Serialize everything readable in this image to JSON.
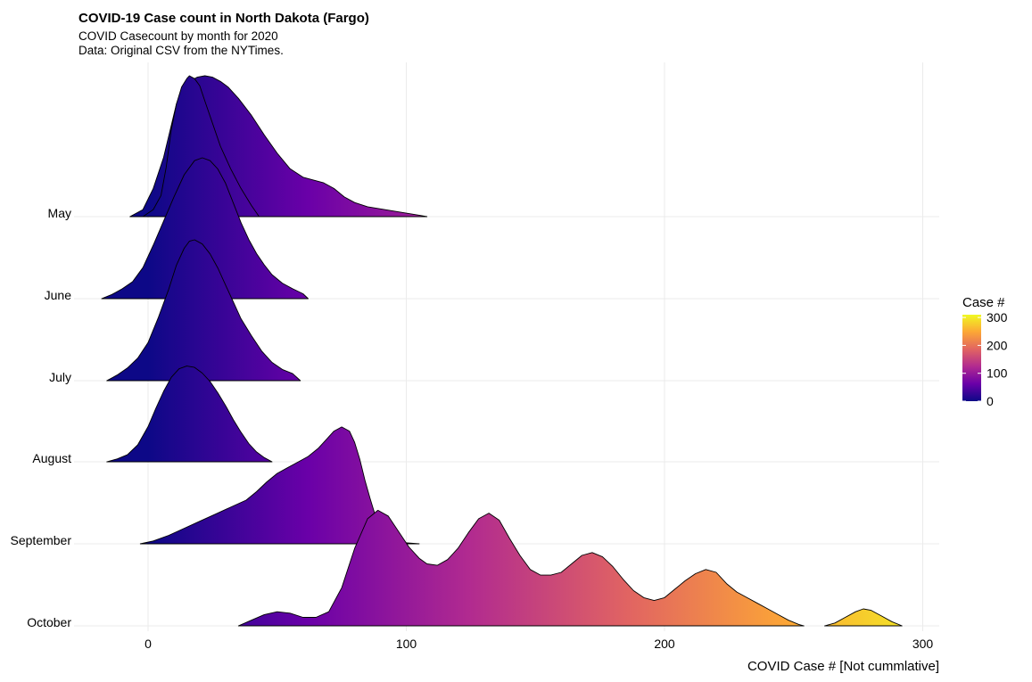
{
  "chart_data": {
    "type": "area",
    "title": "COVID-19 Case count in North Dakota (Fargo)",
    "subtitle_lines": [
      "COVID Casecount by month for 2020",
      "Data: Original CSV from the NYTimes."
    ],
    "xlabel": "COVID Case # [Not cummlative]",
    "ylabel": "",
    "xlim": [
      -27,
      306
    ],
    "x_ticks": [
      0,
      100,
      200,
      300
    ],
    "grid": true,
    "legend": {
      "title": "Case #",
      "ticks": [
        300,
        200,
        100,
        0
      ],
      "range": [
        0,
        310
      ],
      "colors": [
        "#0d0887",
        "#6a00a8",
        "#b12a90",
        "#e16462",
        "#fca636",
        "#f0f921"
      ],
      "placement": "right"
    },
    "categories": [
      "May",
      "June",
      "July",
      "August",
      "September",
      "October"
    ],
    "series": [
      {
        "name": "May",
        "points": [
          [
            -7,
            0
          ],
          [
            -2,
            0.05
          ],
          [
            2,
            0.2
          ],
          [
            6,
            0.42
          ],
          [
            9,
            0.65
          ],
          [
            11,
            0.8
          ],
          [
            13,
            0.9
          ],
          [
            16,
            0.96
          ],
          [
            19,
            0.99
          ],
          [
            22,
            1.0
          ],
          [
            25,
            0.99
          ],
          [
            28,
            0.96
          ],
          [
            31,
            0.92
          ],
          [
            35,
            0.84
          ],
          [
            40,
            0.72
          ],
          [
            45,
            0.58
          ],
          [
            50,
            0.45
          ],
          [
            55,
            0.34
          ],
          [
            60,
            0.28
          ],
          [
            64,
            0.26
          ],
          [
            68,
            0.24
          ],
          [
            72,
            0.2
          ],
          [
            76,
            0.14
          ],
          [
            80,
            0.1
          ],
          [
            85,
            0.07
          ],
          [
            90,
            0.055
          ],
          [
            95,
            0.04
          ],
          [
            100,
            0.025
          ],
          [
            105,
            0.01
          ],
          [
            108,
            0
          ]
        ]
      },
      {
        "name": "May",
        "points": [
          [
            -2,
            0
          ],
          [
            2,
            0.05
          ],
          [
            5,
            0.15
          ],
          [
            7,
            0.35
          ],
          [
            9,
            0.62
          ],
          [
            11,
            0.8
          ],
          [
            13,
            0.92
          ],
          [
            15,
            0.98
          ],
          [
            16,
            1.0
          ],
          [
            18,
            0.98
          ],
          [
            20,
            0.93
          ],
          [
            22,
            0.82
          ],
          [
            25,
            0.66
          ],
          [
            28,
            0.5
          ],
          [
            32,
            0.34
          ],
          [
            36,
            0.2
          ],
          [
            40,
            0.08
          ],
          [
            43,
            0
          ]
        ]
      },
      {
        "name": "June",
        "points": [
          [
            -18,
            0
          ],
          [
            -14,
            0.03
          ],
          [
            -10,
            0.07
          ],
          [
            -6,
            0.12
          ],
          [
            -2,
            0.22
          ],
          [
            2,
            0.38
          ],
          [
            6,
            0.55
          ],
          [
            10,
            0.72
          ],
          [
            14,
            0.88
          ],
          [
            18,
            0.98
          ],
          [
            21,
            1.0
          ],
          [
            24,
            0.98
          ],
          [
            27,
            0.92
          ],
          [
            30,
            0.82
          ],
          [
            33,
            0.68
          ],
          [
            36,
            0.54
          ],
          [
            39,
            0.42
          ],
          [
            42,
            0.32
          ],
          [
            45,
            0.24
          ],
          [
            48,
            0.17
          ],
          [
            52,
            0.11
          ],
          [
            56,
            0.07
          ],
          [
            60,
            0.035
          ],
          [
            62,
            0
          ]
        ]
      },
      {
        "name": "July",
        "points": [
          [
            -16,
            0
          ],
          [
            -12,
            0.04
          ],
          [
            -8,
            0.09
          ],
          [
            -4,
            0.16
          ],
          [
            0,
            0.27
          ],
          [
            4,
            0.45
          ],
          [
            8,
            0.65
          ],
          [
            11,
            0.82
          ],
          [
            14,
            0.94
          ],
          [
            16,
            0.99
          ],
          [
            18,
            1.0
          ],
          [
            21,
            0.97
          ],
          [
            24,
            0.9
          ],
          [
            27,
            0.8
          ],
          [
            30,
            0.68
          ],
          [
            33,
            0.56
          ],
          [
            36,
            0.44
          ],
          [
            40,
            0.32
          ],
          [
            44,
            0.21
          ],
          [
            48,
            0.13
          ],
          [
            52,
            0.08
          ],
          [
            56,
            0.05
          ],
          [
            59,
            0
          ]
        ]
      },
      {
        "name": "August",
        "points": [
          [
            -16,
            0
          ],
          [
            -12,
            0.02
          ],
          [
            -8,
            0.05
          ],
          [
            -4,
            0.12
          ],
          [
            0,
            0.25
          ],
          [
            3,
            0.38
          ],
          [
            6,
            0.5
          ],
          [
            9,
            0.6
          ],
          [
            12,
            0.66
          ],
          [
            15,
            0.68
          ],
          [
            18,
            0.67
          ],
          [
            21,
            0.63
          ],
          [
            24,
            0.57
          ],
          [
            27,
            0.49
          ],
          [
            30,
            0.4
          ],
          [
            33,
            0.3
          ],
          [
            36,
            0.21
          ],
          [
            39,
            0.13
          ],
          [
            42,
            0.07
          ],
          [
            45,
            0.03
          ],
          [
            48,
            0
          ]
        ]
      },
      {
        "name": "September",
        "points": [
          [
            -3,
            0
          ],
          [
            2,
            0.02
          ],
          [
            8,
            0.06
          ],
          [
            14,
            0.11
          ],
          [
            20,
            0.16
          ],
          [
            26,
            0.21
          ],
          [
            32,
            0.26
          ],
          [
            38,
            0.31
          ],
          [
            42,
            0.37
          ],
          [
            46,
            0.44
          ],
          [
            50,
            0.5
          ],
          [
            54,
            0.54
          ],
          [
            58,
            0.58
          ],
          [
            62,
            0.62
          ],
          [
            66,
            0.68
          ],
          [
            69,
            0.74
          ],
          [
            72,
            0.8
          ],
          [
            75,
            0.83
          ],
          [
            78,
            0.8
          ],
          [
            80,
            0.72
          ],
          [
            82,
            0.6
          ],
          [
            84,
            0.45
          ],
          [
            86,
            0.32
          ],
          [
            88,
            0.2
          ],
          [
            90,
            0.12
          ],
          [
            92,
            0.07
          ],
          [
            95,
            0.03
          ],
          [
            98,
            0.01
          ],
          [
            105,
            0
          ]
        ]
      },
      {
        "name": "October",
        "points": [
          [
            35,
            0
          ],
          [
            40,
            0.04
          ],
          [
            45,
            0.08
          ],
          [
            50,
            0.1
          ],
          [
            55,
            0.09
          ],
          [
            60,
            0.06
          ],
          [
            65,
            0.06
          ],
          [
            70,
            0.1
          ],
          [
            75,
            0.27
          ],
          [
            80,
            0.55
          ],
          [
            85,
            0.76
          ],
          [
            89,
            0.82
          ],
          [
            93,
            0.78
          ],
          [
            97,
            0.67
          ],
          [
            101,
            0.56
          ],
          [
            105,
            0.48
          ],
          [
            108,
            0.44
          ],
          [
            112,
            0.43
          ],
          [
            116,
            0.47
          ],
          [
            120,
            0.55
          ],
          [
            124,
            0.66
          ],
          [
            128,
            0.76
          ],
          [
            132,
            0.8
          ],
          [
            136,
            0.75
          ],
          [
            140,
            0.62
          ],
          [
            144,
            0.5
          ],
          [
            148,
            0.4
          ],
          [
            152,
            0.36
          ],
          [
            156,
            0.36
          ],
          [
            160,
            0.38
          ],
          [
            164,
            0.44
          ],
          [
            168,
            0.5
          ],
          [
            172,
            0.52
          ],
          [
            176,
            0.49
          ],
          [
            180,
            0.42
          ],
          [
            184,
            0.33
          ],
          [
            188,
            0.25
          ],
          [
            192,
            0.2
          ],
          [
            196,
            0.18
          ],
          [
            200,
            0.2
          ],
          [
            204,
            0.26
          ],
          [
            208,
            0.32
          ],
          [
            212,
            0.37
          ],
          [
            216,
            0.4
          ],
          [
            220,
            0.38
          ],
          [
            224,
            0.3
          ],
          [
            228,
            0.24
          ],
          [
            232,
            0.2
          ],
          [
            236,
            0.16
          ],
          [
            240,
            0.12
          ],
          [
            244,
            0.08
          ],
          [
            248,
            0.04
          ],
          [
            252,
            0.01
          ],
          [
            254,
            0
          ]
        ]
      },
      {
        "name": "October",
        "points": [
          [
            262,
            0
          ],
          [
            266,
            0.02
          ],
          [
            270,
            0.06
          ],
          [
            274,
            0.1
          ],
          [
            277,
            0.12
          ],
          [
            280,
            0.11
          ],
          [
            284,
            0.07
          ],
          [
            288,
            0.03
          ],
          [
            292,
            0
          ]
        ]
      }
    ]
  }
}
